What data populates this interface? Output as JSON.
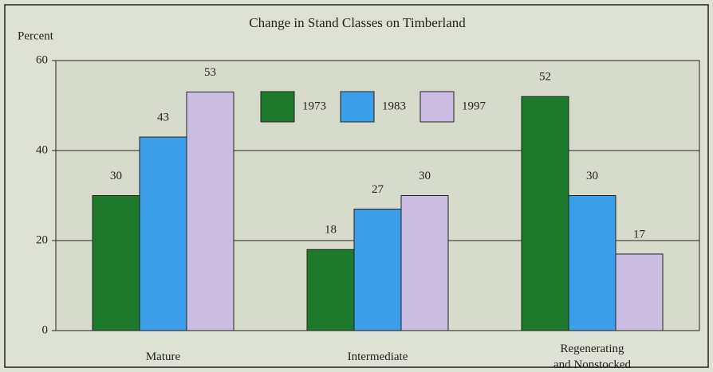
{
  "chart_data": {
    "type": "bar",
    "title": "Change in Stand Classes on Timberland",
    "y_label": "Percent",
    "categories": [
      "Mature",
      "Intermediate",
      "Regenerating\nand Nonstocked"
    ],
    "series": [
      {
        "name": "1973",
        "color": "#1d7a2c",
        "values": [
          30,
          18,
          52
        ]
      },
      {
        "name": "1983",
        "color": "#3a9ee8",
        "values": [
          43,
          27,
          30
        ]
      },
      {
        "name": "1997",
        "color": "#cbbde2",
        "values": [
          53,
          30,
          17
        ]
      }
    ],
    "ylim": [
      0,
      60
    ],
    "yticks": [
      0,
      20,
      40,
      60
    ],
    "grid": true,
    "legend": "top"
  }
}
